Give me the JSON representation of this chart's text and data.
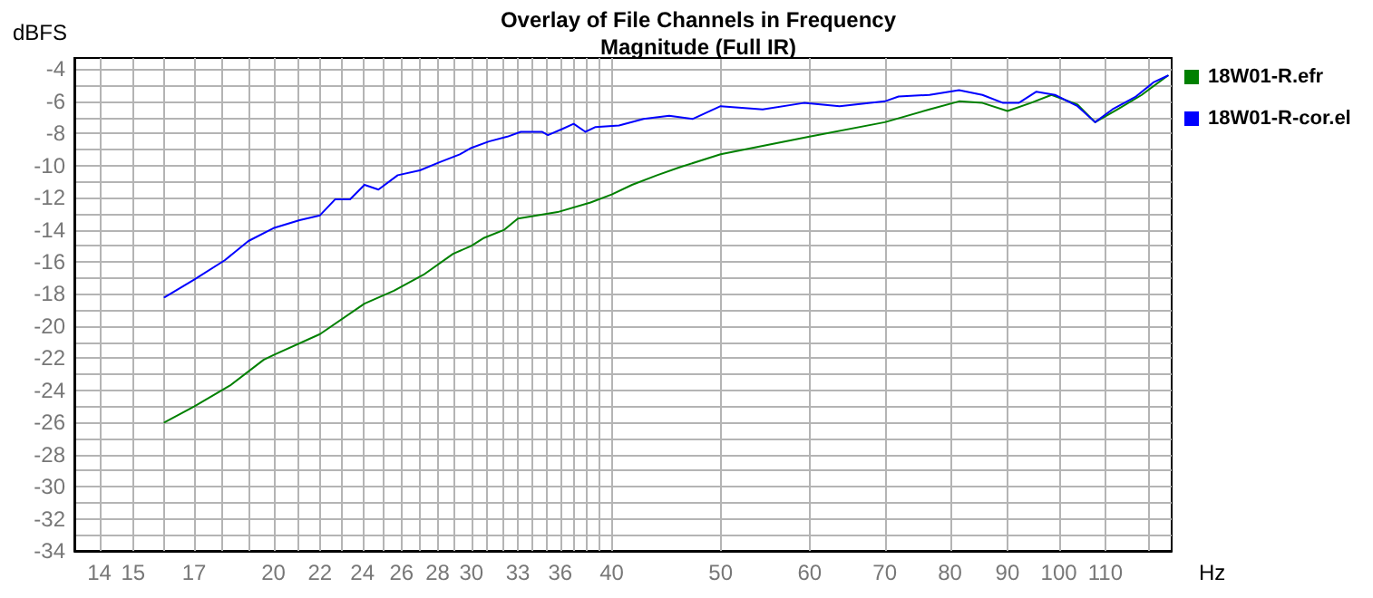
{
  "chart_data": {
    "type": "line",
    "title": "Overlay of File Channels in Frequency",
    "subtitle": "Magnitude (Full IR)",
    "xlabel": "Hz",
    "ylabel": "dBFS",
    "log": "x",
    "grid": true,
    "legend": "right",
    "marker": "none",
    "line_style": "solid",
    "xlim": [
      13.3,
      126
    ],
    "ylim": [
      -34,
      -3.3
    ],
    "xticks": [
      14,
      15,
      {
        "value": 16,
        "label": null
      },
      17,
      {
        "value": 18,
        "label": null
      },
      {
        "value": 19,
        "label": null
      },
      20,
      {
        "value": 21,
        "label": null
      },
      22,
      {
        "value": 23,
        "label": null
      },
      24,
      {
        "value": 25,
        "label": null
      },
      26,
      {
        "value": 27,
        "label": null
      },
      28,
      {
        "value": 29,
        "label": null
      },
      30,
      {
        "value": 31,
        "label": null
      },
      {
        "value": 32,
        "label": null
      },
      33,
      {
        "value": 34,
        "label": null
      },
      {
        "value": 35,
        "label": null
      },
      36,
      {
        "value": 37,
        "label": null
      },
      {
        "value": 38,
        "label": null
      },
      {
        "value": 39,
        "label": null
      },
      40,
      50,
      60,
      70,
      80,
      90,
      100,
      110,
      {
        "value": 120,
        "label": null
      }
    ],
    "yticks": [
      -34,
      {
        "value": -33,
        "label": null
      },
      -32,
      {
        "value": -31,
        "label": null
      },
      -30,
      {
        "value": -29,
        "label": null
      },
      -28,
      {
        "value": -27,
        "label": null
      },
      -26,
      {
        "value": -25,
        "label": null
      },
      -24,
      {
        "value": -23,
        "label": null
      },
      -22,
      {
        "value": -21,
        "label": null
      },
      -20,
      {
        "value": -19,
        "label": null
      },
      -18,
      {
        "value": -17,
        "label": null
      },
      -16,
      {
        "value": -15,
        "label": null
      },
      -14,
      {
        "value": -13,
        "label": null
      },
      -12,
      {
        "value": -11,
        "label": null
      },
      -10,
      {
        "value": -9,
        "label": null
      },
      -8,
      {
        "value": -7,
        "label": null
      },
      -6,
      {
        "value": -5,
        "label": null
      },
      -4
    ],
    "series": [
      {
        "name": "18W01-R.efr",
        "color": "#008000",
        "x": [
          16,
          17,
          18.3,
          19.6,
          20,
          22,
          24.1,
          25.6,
          27.2,
          28.9,
          30,
          30.8,
          32.1,
          33,
          35.8,
          38.3,
          40,
          41.7,
          43.9,
          46,
          50,
          60,
          70,
          76.7,
          81.5,
          85.5,
          90,
          94.4,
          98.5,
          103.9,
          107.7,
          112.8,
          118.5,
          125
        ],
        "values": [
          -26.0,
          -25.0,
          -23.7,
          -22.1,
          -21.8,
          -20.5,
          -18.6,
          -17.8,
          -16.8,
          -15.5,
          -15.0,
          -14.5,
          -14.0,
          -13.3,
          -12.9,
          -12.3,
          -11.8,
          -11.2,
          -10.6,
          -10.1,
          -9.3,
          -8.2,
          -7.3,
          -6.5,
          -6.0,
          -6.1,
          -6.6,
          -6.1,
          -5.6,
          -6.2,
          -7.3,
          -6.5,
          -5.6,
          -4.4
        ]
      },
      {
        "name": "18W01-R-cor.el",
        "color": "#0000ff",
        "x": [
          16,
          17,
          18.1,
          19,
          20,
          21.1,
          22,
          22.7,
          23.4,
          24.1,
          24.8,
          25.8,
          27,
          28.1,
          29.3,
          30,
          31.1,
          32.3,
          33.2,
          34.7,
          35.1,
          36.2,
          37,
          37.9,
          38.7,
          40.6,
          42.7,
          45,
          47.2,
          50,
          54.5,
          59.3,
          63.8,
          70,
          72,
          76.7,
          81.5,
          85.5,
          89.2,
          92.1,
          95.5,
          99.2,
          103.9,
          107.7,
          111.6,
          117.1,
          121.5,
          125
        ],
        "values": [
          -18.2,
          -17.1,
          -15.9,
          -14.7,
          -13.9,
          -13.4,
          -13.1,
          -12.1,
          -12.1,
          -11.2,
          -11.5,
          -10.6,
          -10.3,
          -9.8,
          -9.3,
          -8.9,
          -8.5,
          -8.2,
          -7.9,
          -7.9,
          -8.1,
          -7.7,
          -7.4,
          -7.9,
          -7.6,
          -7.5,
          -7.1,
          -6.9,
          -7.1,
          -6.3,
          -6.5,
          -6.1,
          -6.3,
          -6.0,
          -5.7,
          -5.6,
          -5.3,
          -5.6,
          -6.1,
          -6.1,
          -5.4,
          -5.6,
          -6.3,
          -7.3,
          -6.5,
          -5.7,
          -4.8,
          -4.4
        ]
      }
    ]
  }
}
